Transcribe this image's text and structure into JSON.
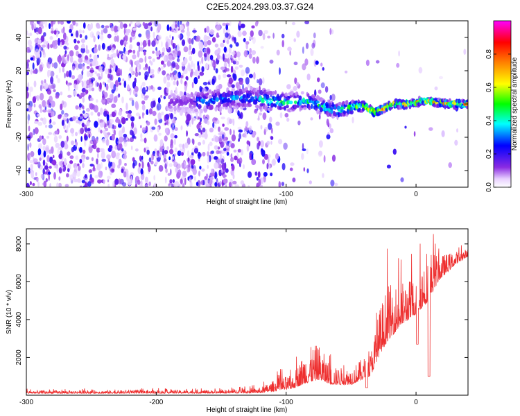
{
  "title": "C2E5.2024.293.03.37.G24",
  "chart_data": [
    {
      "type": "heatmap",
      "xlabel": "Height of straight line (km)",
      "ylabel": "Frequency (Hz)",
      "xlim": [
        -300,
        40
      ],
      "ylim": [
        -50,
        50
      ],
      "x_ticks": [
        -300,
        -200,
        -100,
        0
      ],
      "x_tick_labels": [
        "-300",
        "-200",
        "-100",
        "0"
      ],
      "y_ticks": [
        -40,
        -20,
        0,
        20,
        40
      ],
      "y_tick_labels": [
        "-40",
        "-20",
        "0",
        "20",
        "40"
      ],
      "colorbar": {
        "label": "Normalized spectral amplitude",
        "range": [
          0,
          1
        ],
        "ticks": [
          0.0,
          0.2,
          0.4,
          0.6,
          0.8
        ],
        "tick_labels": [
          "0.0",
          "0.2",
          "0.4",
          "0.6",
          "0.8"
        ],
        "colormap": [
          "#ffffff",
          "#8a2be2",
          "#0000ff",
          "#00ffff",
          "#00ff00",
          "#ffff00",
          "#ff8000",
          "#ff0000",
          "#ff00ff"
        ]
      },
      "ridge": [
        {
          "x": -175,
          "y": 1
        },
        {
          "x": -160,
          "y": 2
        },
        {
          "x": -140,
          "y": 4
        },
        {
          "x": -120,
          "y": 3
        },
        {
          "x": -100,
          "y": 1
        },
        {
          "x": -85,
          "y": 2
        },
        {
          "x": -70,
          "y": -2
        },
        {
          "x": -60,
          "y": -4
        },
        {
          "x": -50,
          "y": -2
        },
        {
          "x": -40,
          "y": -1
        },
        {
          "x": -32,
          "y": -5
        },
        {
          "x": -25,
          "y": -3
        },
        {
          "x": -18,
          "y": 0
        },
        {
          "x": -5,
          "y": 0
        },
        {
          "x": 5,
          "y": 2
        },
        {
          "x": 15,
          "y": 1
        },
        {
          "x": 25,
          "y": 0
        },
        {
          "x": 40,
          "y": 0
        }
      ]
    },
    {
      "type": "line",
      "xlabel": "Height of straight line (km)",
      "ylabel": "SNR (10 * v/v)",
      "xlim": [
        -300,
        40
      ],
      "ylim": [
        0,
        8800
      ],
      "x_ticks": [
        -300,
        -200,
        -100,
        0
      ],
      "x_tick_labels": [
        "-300",
        "-200",
        "-100",
        "0"
      ],
      "y_ticks": [
        2000,
        4000,
        6000,
        8000
      ],
      "y_tick_labels": [
        "2000",
        "4000",
        "6000",
        "8000"
      ],
      "line_color": "#ee3030",
      "envelope": [
        {
          "x": -300,
          "base": 120,
          "amp": 150
        },
        {
          "x": -150,
          "base": 130,
          "amp": 170
        },
        {
          "x": -120,
          "base": 160,
          "amp": 280
        },
        {
          "x": -105,
          "base": 350,
          "amp": 700
        },
        {
          "x": -95,
          "base": 450,
          "amp": 700
        },
        {
          "x": -85,
          "base": 900,
          "amp": 1800
        },
        {
          "x": -75,
          "base": 1100,
          "amp": 1900
        },
        {
          "x": -65,
          "base": 700,
          "amp": 900
        },
        {
          "x": -50,
          "base": 700,
          "amp": 900
        },
        {
          "x": -35,
          "base": 1200,
          "amp": 1300
        },
        {
          "x": -28,
          "base": 2500,
          "amp": 2500
        },
        {
          "x": -22,
          "base": 3300,
          "amp": 3000
        },
        {
          "x": -12,
          "base": 4000,
          "amp": 2300
        },
        {
          "x": 0,
          "base": 4600,
          "amp": 2000
        },
        {
          "x": 8,
          "base": 5300,
          "amp": 3000
        },
        {
          "x": 18,
          "base": 6300,
          "amp": 1300
        },
        {
          "x": 30,
          "base": 7000,
          "amp": 700
        },
        {
          "x": 40,
          "base": 7400,
          "amp": 400
        }
      ],
      "dips": [
        {
          "x": 10,
          "y": 1000
        },
        {
          "x": 1,
          "y": 2700
        },
        {
          "x": -38,
          "y": 400
        }
      ]
    }
  ]
}
